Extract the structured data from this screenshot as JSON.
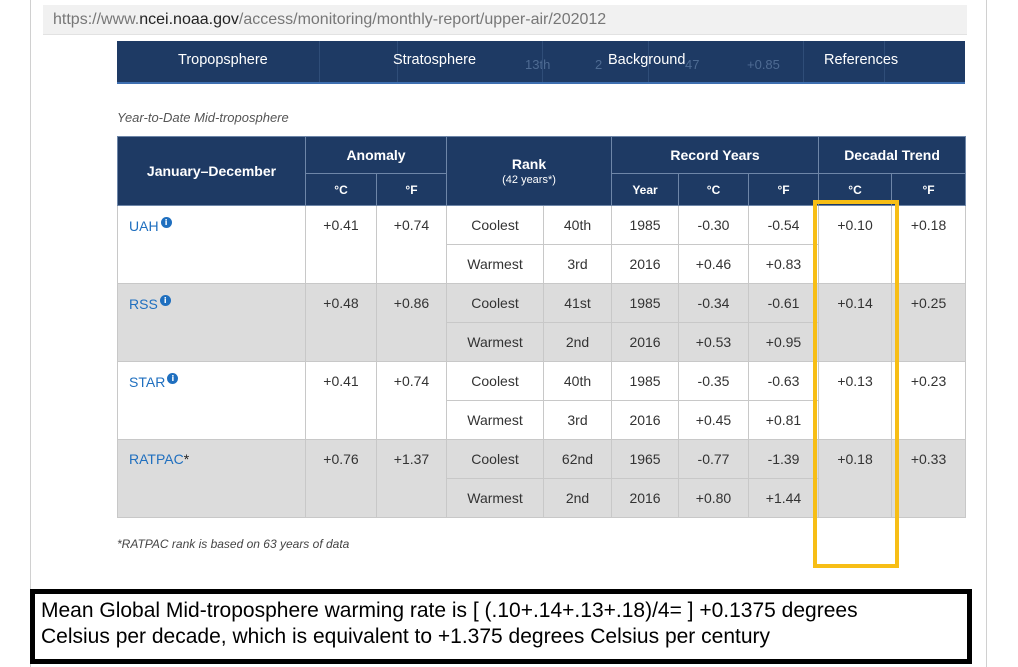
{
  "url": {
    "prefix": "https://www.",
    "domain": "ncei.noaa.gov",
    "path": "/access/monitoring/monthly-report/upper-air/202012"
  },
  "nav": {
    "items": [
      "Tropopsphere",
      "Stratosphere",
      "Background",
      "References"
    ],
    "ghost_text": [
      "13th",
      "2",
      "47",
      "+0.85"
    ]
  },
  "caption": "Year-to-Date Mid-troposphere",
  "table": {
    "period_header": "January–December",
    "anomaly_header": "Anomaly",
    "rank_header": "Rank",
    "rank_sub": "(42 years*)",
    "record_header": "Record Years",
    "trend_header": "Decadal Trend",
    "sub_headers": {
      "celsius": "°C",
      "fahrenheit": "°F",
      "year": "Year"
    },
    "datasets": [
      {
        "name": "UAH",
        "has_info": true,
        "star": "",
        "anomaly_c": "+0.41",
        "anomaly_f": "+0.74",
        "rows": [
          {
            "label": "Coolest",
            "rank": "40th",
            "year": "1985",
            "c": "-0.30",
            "f": "-0.54"
          },
          {
            "label": "Warmest",
            "rank": "3rd",
            "year": "2016",
            "c": "+0.46",
            "f": "+0.83"
          }
        ],
        "trend_c": "+0.10",
        "trend_f": "+0.18"
      },
      {
        "name": "RSS",
        "has_info": true,
        "star": "",
        "anomaly_c": "+0.48",
        "anomaly_f": "+0.86",
        "rows": [
          {
            "label": "Coolest",
            "rank": "41st",
            "year": "1985",
            "c": "-0.34",
            "f": "-0.61"
          },
          {
            "label": "Warmest",
            "rank": "2nd",
            "year": "2016",
            "c": "+0.53",
            "f": "+0.95"
          }
        ],
        "trend_c": "+0.14",
        "trend_f": "+0.25"
      },
      {
        "name": "STAR",
        "has_info": true,
        "star": "",
        "anomaly_c": "+0.41",
        "anomaly_f": "+0.74",
        "rows": [
          {
            "label": "Coolest",
            "rank": "40th",
            "year": "1985",
            "c": "-0.35",
            "f": "-0.63"
          },
          {
            "label": "Warmest",
            "rank": "3rd",
            "year": "2016",
            "c": "+0.45",
            "f": "+0.81"
          }
        ],
        "trend_c": "+0.13",
        "trend_f": "+0.23"
      },
      {
        "name": "RATPAC",
        "has_info": false,
        "star": "*",
        "anomaly_c": "+0.76",
        "anomaly_f": "+1.37",
        "rows": [
          {
            "label": "Coolest",
            "rank": "62nd",
            "year": "1965",
            "c": "-0.77",
            "f": "-1.39"
          },
          {
            "label": "Warmest",
            "rank": "2nd",
            "year": "2016",
            "c": "+0.80",
            "f": "+1.44"
          }
        ],
        "trend_c": "+0.18",
        "trend_f": "+0.33"
      }
    ]
  },
  "footnote": "*RATPAC rank is based on 63 years of data",
  "note": {
    "line1": "Mean Global Mid-troposphere warming rate is [ (.10+.14+.13+.18)/4= ] +0.1375 degrees",
    "line2": "Celsius per decade, which is equivalent to +1.375 degrees Celsius per century"
  },
  "colors": {
    "header_navy": "#1e3a64",
    "link_blue": "#1f6fbf",
    "highlight": "#f7be16",
    "row_grey": "#dcdcdc"
  },
  "icons": {
    "info": "info-icon"
  }
}
